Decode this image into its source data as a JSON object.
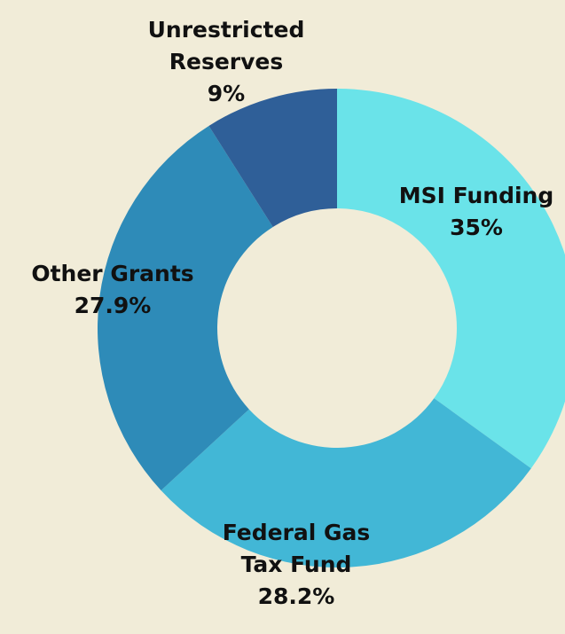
{
  "chart_data": {
    "type": "donut",
    "categories": [
      "MSI Funding",
      "Federal Gas Tax Fund",
      "Other Grants",
      "Unrestricted Reserves"
    ],
    "values": [
      35,
      28.2,
      27.9,
      9
    ],
    "value_labels": [
      "35%",
      "28.2%",
      "27.9%",
      "9%"
    ],
    "colors": [
      "#6ae3e9",
      "#42b7d6",
      "#2e8bb8",
      "#2f5f98"
    ]
  }
}
